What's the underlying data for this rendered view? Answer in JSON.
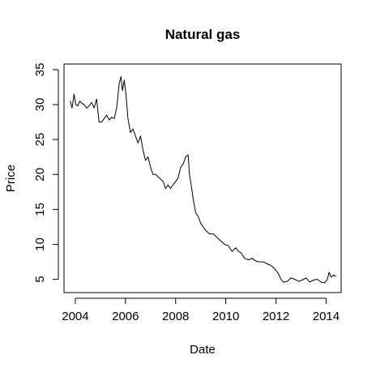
{
  "chart_data": {
    "type": "line",
    "title": "Natural gas",
    "xlabel": "Date",
    "ylabel": "Price",
    "xlim": [
      2003.55,
      2014.6
    ],
    "ylim": [
      3.1,
      35.8
    ],
    "x_ticks": [
      2004,
      2006,
      2008,
      2010,
      2012,
      2014
    ],
    "x_tick_labels": [
      "2004",
      "2006",
      "2008",
      "2010",
      "2012",
      "2014"
    ],
    "y_ticks": [
      5,
      10,
      15,
      20,
      25,
      30,
      35
    ],
    "y_tick_labels": [
      "5",
      "10",
      "15",
      "20",
      "25",
      "30",
      "35"
    ],
    "grid": false,
    "legend": "none",
    "line_color": "#000000",
    "series": [
      {
        "x": [
          2003.8,
          2003.87,
          2003.95,
          2004.02,
          2004.1,
          2004.18,
          2004.25,
          2004.35,
          2004.45,
          2004.55,
          2004.65,
          2004.75,
          2004.85,
          2004.95,
          2005.05,
          2005.15,
          2005.25,
          2005.35,
          2005.45,
          2005.55,
          2005.65,
          2005.75,
          2005.82,
          2005.88,
          2005.95,
          2006.02,
          2006.1,
          2006.2,
          2006.3,
          2006.4,
          2006.5,
          2006.6,
          2006.7,
          2006.8,
          2006.9,
          2007.0,
          2007.1,
          2007.2,
          2007.35,
          2007.5,
          2007.6,
          2007.7,
          2007.8,
          2007.9,
          2008.0,
          2008.1,
          2008.2,
          2008.3,
          2008.4,
          2008.5,
          2008.55,
          2008.6,
          2008.7,
          2008.8,
          2008.9,
          2009.0,
          2009.1,
          2009.2,
          2009.35,
          2009.5,
          2009.65,
          2009.8,
          2009.95,
          2010.1,
          2010.25,
          2010.4,
          2010.5,
          2010.6,
          2010.75,
          2010.9,
          2011.05,
          2011.2,
          2011.35,
          2011.5,
          2011.65,
          2011.8,
          2011.95,
          2012.1,
          2012.2,
          2012.3,
          2012.45,
          2012.6,
          2012.75,
          2012.9,
          2013.05,
          2013.2,
          2013.35,
          2013.5,
          2013.65,
          2013.8,
          2013.95,
          2014.05,
          2014.12,
          2014.2,
          2014.3,
          2014.4
        ],
        "values": [
          30.5,
          29.5,
          31.5,
          30.0,
          29.8,
          30.5,
          30.2,
          30.0,
          29.5,
          29.8,
          30.3,
          29.5,
          30.8,
          27.5,
          27.5,
          28.0,
          28.5,
          27.8,
          28.2,
          28.0,
          29.5,
          33.0,
          34.0,
          32.0,
          33.5,
          31.5,
          28.0,
          26.0,
          26.5,
          25.5,
          24.5,
          25.5,
          23.5,
          22.0,
          22.5,
          21.0,
          20.0,
          20.0,
          19.5,
          19.0,
          18.0,
          18.5,
          18.0,
          18.5,
          19.0,
          19.5,
          21.0,
          21.5,
          22.5,
          22.8,
          20.0,
          19.0,
          16.5,
          14.5,
          14.0,
          13.0,
          12.5,
          12.0,
          11.5,
          11.5,
          11.0,
          10.5,
          10.0,
          9.8,
          9.0,
          9.5,
          9.0,
          8.8,
          8.0,
          7.8,
          8.0,
          7.6,
          7.5,
          7.5,
          7.2,
          7.0,
          6.5,
          5.8,
          5.0,
          4.6,
          4.7,
          5.2,
          5.0,
          4.7,
          4.9,
          5.2,
          4.6,
          4.9,
          5.0,
          4.6,
          4.5,
          5.0,
          6.0,
          5.3,
          5.6,
          5.4
        ]
      }
    ]
  }
}
